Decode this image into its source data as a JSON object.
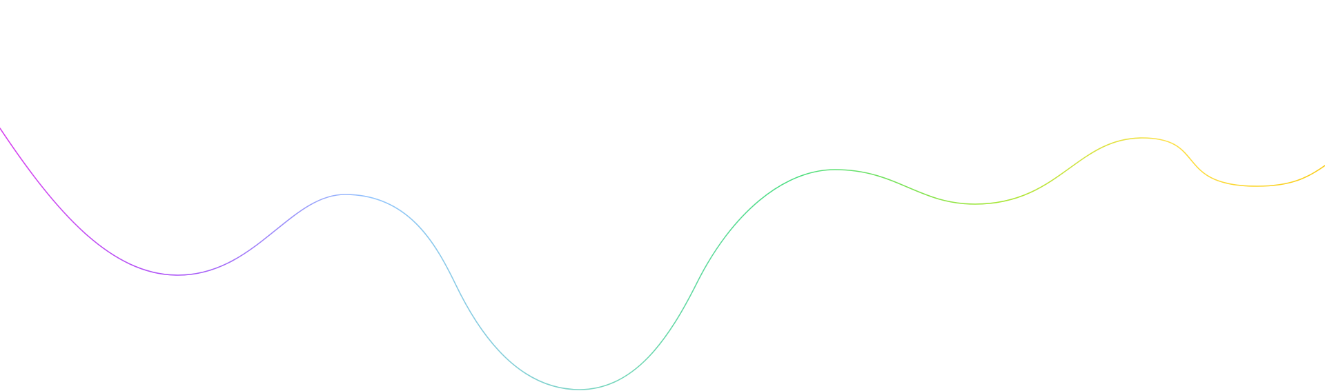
{
  "background_color": "#ffffff",
  "wave": {
    "gradient_colors": [
      "#d946ef",
      "#a855f7",
      "#93c5fd",
      "#7dd3c8",
      "#4ade80",
      "#a3e635",
      "#fde047",
      "#facc15"
    ]
  }
}
